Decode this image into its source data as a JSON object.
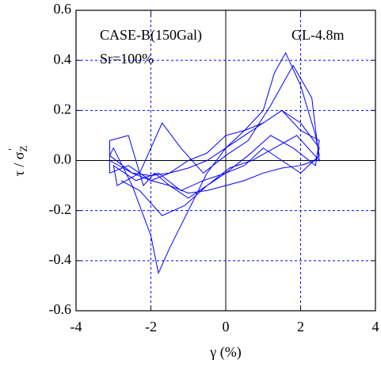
{
  "chart_data": {
    "type": "line",
    "annotations": [
      "CASE-B(150Gal)",
      "Sr=100%",
      "GL-4.8m"
    ],
    "xlabel": "γ (%)",
    "ylabel": {
      "text": "τ / σ",
      "subscript": "Z",
      "superscript": "'"
    },
    "xlim": [
      -4,
      4
    ],
    "xticks": [
      -4,
      -2,
      0,
      2,
      4
    ],
    "ylim": [
      -0.6,
      0.6
    ],
    "yticks": [
      -0.6,
      -0.4,
      -0.2,
      {
        "value": 0,
        "label": "0.0"
      },
      0.2,
      0.4,
      0.6
    ],
    "grid": true,
    "series": [
      {
        "color": "#0000ff",
        "x": [
          -3.1,
          -2.5,
          -2,
          -1.5,
          -1,
          -0.5,
          0,
          0.5,
          1,
          1.5,
          2,
          2.5,
          2.4,
          2,
          1.5,
          1,
          0.5,
          0,
          -0.5,
          -1,
          -1.5,
          -2,
          -2.5,
          -3.1,
          -3.0,
          -2.5,
          -2.0,
          -1.8,
          -1.5,
          -1.0,
          -0.5,
          0,
          0.5,
          1.0,
          1.3,
          1.6,
          2.0,
          2.4,
          2.5,
          2.0,
          1.5,
          1.0,
          0.5,
          0,
          -0.5,
          -1.0,
          -1.5,
          -1.9,
          -2.2,
          -2.6,
          -3.1,
          -3.1,
          -2.6,
          -2.0,
          -1.5,
          -1.0,
          -0.5,
          0,
          0.5,
          1.0,
          1.5,
          2.0,
          2.5,
          2.4,
          1.8,
          1.2,
          0.6,
          0,
          -0.6,
          -1.2,
          -1.8,
          -2.4,
          -3.0,
          -2.9,
          -2.3,
          -1.7,
          -1.2,
          -0.6,
          0,
          0.6,
          1.2,
          1.8,
          2.3,
          2.5,
          1.9,
          1.3,
          0.7,
          0.1,
          -0.5,
          -1.1,
          -1.7,
          -2.3,
          -2.8
        ],
        "values": [
          0.0,
          -0.05,
          -0.06,
          -0.05,
          -0.03,
          0.0,
          0.05,
          0.1,
          0.15,
          0.2,
          0.15,
          0.05,
          0.0,
          -0.02,
          -0.03,
          -0.05,
          -0.08,
          -0.1,
          -0.12,
          -0.13,
          -0.1,
          -0.08,
          -0.05,
          0.02,
          0.05,
          -0.1,
          -0.3,
          -0.45,
          -0.35,
          -0.2,
          -0.05,
          0.05,
          0.12,
          0.2,
          0.35,
          0.43,
          0.3,
          0.1,
          0.02,
          -0.05,
          0.0,
          0.05,
          -0.02,
          -0.05,
          -0.1,
          -0.15,
          -0.1,
          -0.05,
          -0.1,
          0.1,
          0.08,
          -0.05,
          -0.02,
          -0.08,
          -0.05,
          0.0,
          0.03,
          0.1,
          0.12,
          0.15,
          0.2,
          0.12,
          0.08,
          -0.02,
          0.05,
          0.1,
          0.02,
          -0.05,
          -0.08,
          -0.12,
          -0.05,
          -0.08,
          -0.02,
          -0.1,
          -0.05,
          0.15,
          0.05,
          -0.05,
          0.02,
          0.08,
          0.22,
          0.38,
          0.25,
          0.0,
          0.1,
          0.05,
          0.0,
          -0.03,
          -0.1,
          -0.18,
          -0.22,
          -0.12,
          -0.08
        ]
      }
    ]
  }
}
